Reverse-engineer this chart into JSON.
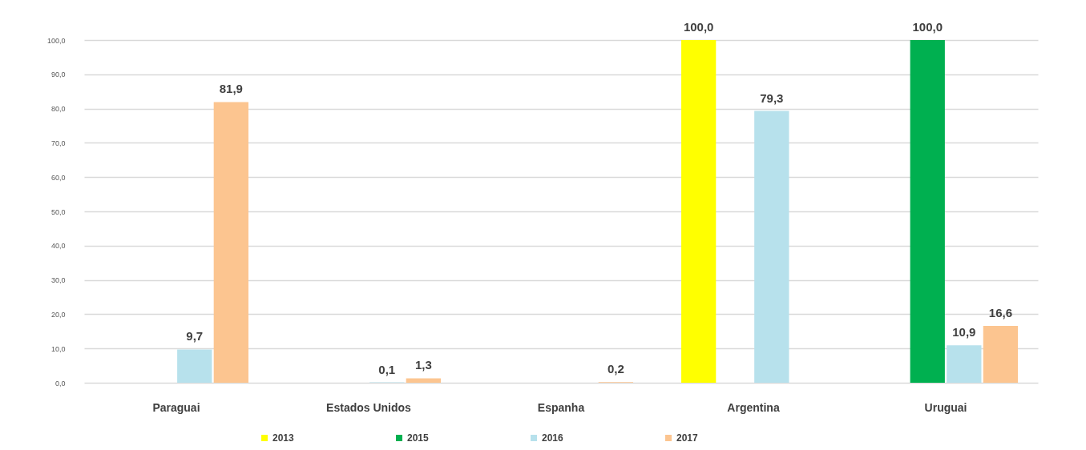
{
  "chart_data": {
    "type": "bar",
    "categories": [
      "Paraguai",
      "Estados Unidos",
      "Espanha",
      "Argentina",
      "Uruguai"
    ],
    "series": [
      {
        "name": "2013",
        "color": "#ffff00",
        "values": [
          null,
          null,
          null,
          100.0,
          null
        ],
        "value_labels": [
          null,
          null,
          null,
          "100,0",
          null
        ]
      },
      {
        "name": "2015",
        "color": "#00b050",
        "values": [
          null,
          null,
          null,
          null,
          100.0
        ],
        "value_labels": [
          null,
          null,
          null,
          null,
          "100,0"
        ]
      },
      {
        "name": "2016",
        "color": "#b7e1ec",
        "values": [
          9.7,
          0.1,
          null,
          79.3,
          10.9
        ],
        "value_labels": [
          "9,7",
          "0,1",
          null,
          "79,3",
          "10,9"
        ]
      },
      {
        "name": "2017",
        "color": "#fcc590",
        "values": [
          81.9,
          1.3,
          0.2,
          null,
          16.6
        ],
        "value_labels": [
          "81,9",
          "1,3",
          "0,2",
          null,
          "16,6"
        ]
      }
    ],
    "ylim": [
      0,
      100
    ],
    "yticks": [
      {
        "value": 0,
        "label": "0,0"
      },
      {
        "value": 10,
        "label": "10,0"
      },
      {
        "value": 20,
        "label": "20,0"
      },
      {
        "value": 30,
        "label": "30,0"
      },
      {
        "value": 40,
        "label": "40,0"
      },
      {
        "value": 50,
        "label": "50,0"
      },
      {
        "value": 60,
        "label": "60,0"
      },
      {
        "value": 70,
        "label": "70,0"
      },
      {
        "value": 80,
        "label": "80,0"
      },
      {
        "value": 90,
        "label": "90,0"
      },
      {
        "value": 100,
        "label": "100,0"
      }
    ],
    "grid": "y",
    "legend": "bottom"
  }
}
